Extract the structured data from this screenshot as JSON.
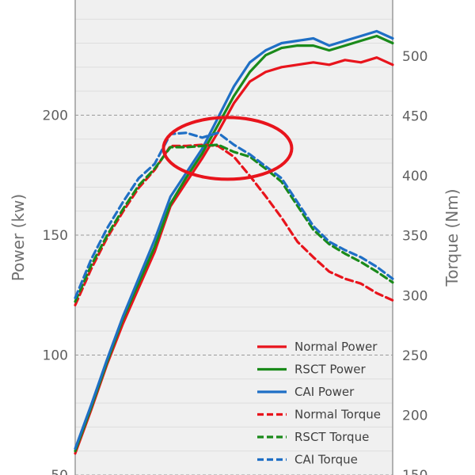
{
  "chart_data": {
    "type": "line",
    "title": "",
    "xlabel": "",
    "left_axis": {
      "label": "Power (kw)",
      "ticks": [
        50,
        100,
        150,
        200
      ],
      "ylim": [
        50,
        248
      ]
    },
    "right_axis": {
      "label": "Torque (Nm)",
      "ticks": [
        150,
        200,
        250,
        300,
        350,
        400,
        450,
        500
      ],
      "ylim": [
        150,
        547
      ]
    },
    "x_range": [
      0,
      100
    ],
    "grid": true,
    "legend_position": "bottom-right",
    "highlight": {
      "shape": "ellipse",
      "color": "#e8141c",
      "center": [
        48,
        423
      ],
      "axis": "right"
    },
    "series": [
      {
        "name": "Normal Power",
        "axis": "left",
        "color": "#e8141c",
        "dash": false,
        "x": [
          0,
          5,
          10,
          15,
          20,
          25,
          30,
          35,
          40,
          45,
          50,
          55,
          60,
          65,
          70,
          75,
          80,
          85,
          90,
          95,
          100
        ],
        "y": [
          59,
          77,
          96,
          113,
          128,
          143,
          162,
          172,
          182,
          193,
          205,
          214,
          218,
          220,
          221,
          222,
          221,
          223,
          222,
          224,
          221
        ]
      },
      {
        "name": "RSCT Power",
        "axis": "left",
        "color": "#1a8a1a",
        "dash": false,
        "x": [
          0,
          5,
          10,
          15,
          20,
          25,
          30,
          35,
          40,
          45,
          50,
          55,
          60,
          65,
          70,
          75,
          80,
          85,
          90,
          95,
          100
        ],
        "y": [
          60,
          78,
          97,
          115,
          130,
          145,
          163,
          174,
          184,
          196,
          208,
          218,
          225,
          228,
          229,
          229,
          227,
          229,
          231,
          233,
          230
        ]
      },
      {
        "name": "CAI Power",
        "axis": "left",
        "color": "#1f6fc5",
        "dash": false,
        "x": [
          0,
          5,
          10,
          15,
          20,
          25,
          30,
          35,
          40,
          45,
          50,
          55,
          60,
          65,
          70,
          75,
          80,
          85,
          90,
          95,
          100
        ],
        "y": [
          61,
          79,
          98,
          116,
          132,
          148,
          166,
          176,
          186,
          199,
          212,
          222,
          227,
          230,
          231,
          232,
          229,
          231,
          233,
          235,
          232
        ]
      },
      {
        "name": "Normal Torque",
        "axis": "right",
        "color": "#e8141c",
        "dash": true,
        "x": [
          0,
          5,
          10,
          15,
          20,
          25,
          30,
          35,
          40,
          45,
          50,
          55,
          60,
          65,
          70,
          75,
          80,
          85,
          90,
          95,
          100
        ],
        "y": [
          292,
          322,
          348,
          370,
          390,
          405,
          425,
          425,
          426,
          425,
          416,
          400,
          383,
          365,
          345,
          332,
          320,
          314,
          310,
          302,
          296
        ]
      },
      {
        "name": "RSCT Torque",
        "axis": "right",
        "color": "#1a8a1a",
        "dash": true,
        "x": [
          0,
          5,
          10,
          15,
          20,
          25,
          30,
          35,
          40,
          45,
          50,
          55,
          60,
          65,
          70,
          75,
          80,
          85,
          90,
          95,
          100
        ],
        "y": [
          295,
          325,
          350,
          372,
          392,
          406,
          424,
          424,
          425,
          426,
          420,
          416,
          406,
          395,
          375,
          355,
          343,
          335,
          328,
          320,
          311
        ]
      },
      {
        "name": "CAI Torque",
        "axis": "right",
        "color": "#1f6fc5",
        "dash": true,
        "x": [
          0,
          5,
          10,
          15,
          20,
          25,
          30,
          35,
          40,
          45,
          50,
          55,
          60,
          65,
          70,
          75,
          80,
          85,
          90,
          95,
          100
        ],
        "y": [
          298,
          330,
          356,
          378,
          398,
          410,
          435,
          436,
          432,
          436,
          426,
          418,
          408,
          398,
          378,
          358,
          345,
          338,
          332,
          324,
          314
        ]
      }
    ]
  }
}
